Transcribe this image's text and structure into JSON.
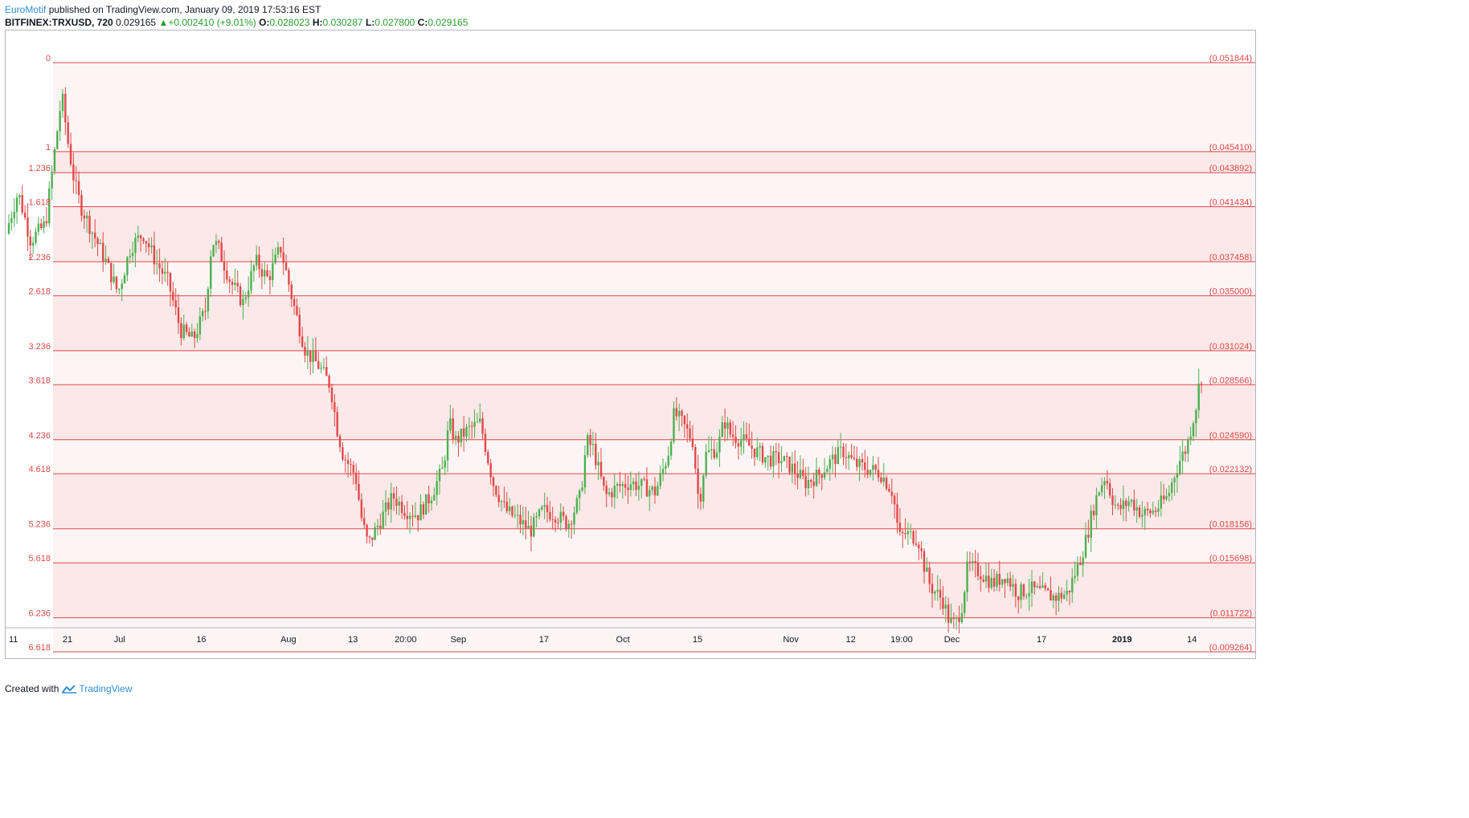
{
  "header": {
    "author": "EuroMotif",
    "published_text": " published on TradingView.com, January 09, 2019 17:53:16 EST",
    "symbol": "BITFINEX:TRXUSD, 720",
    "last_price": "0.029165",
    "change": "+0.002410 (+9.01%)",
    "open_label": "O:",
    "open_value": "0.028023",
    "high_label": "H:",
    "high_value": "0.030287",
    "low_label": "L:",
    "low_value": "0.027800",
    "close_label": "C:",
    "close_value": "0.029165"
  },
  "footer": {
    "created_with": "Created with",
    "brand": "TradingView"
  },
  "colors": {
    "fib_line": "#e04848",
    "fib_text": "#e04848",
    "fib_fill_light": "#fdf5f5",
    "fib_fill_dark": "#fbe8e8",
    "bull": "#4caf50",
    "bear": "#e04848",
    "axis_text": "#131722"
  },
  "chart_data": {
    "type": "candlestick",
    "symbol": "BITFINEX:TRXUSD",
    "interval": "720",
    "y_range": [
      0.0082,
      0.0543
    ],
    "fib_extension": {
      "levels": [
        {
          "ratio": "0",
          "price": "0.051844"
        },
        {
          "ratio": "1",
          "price": "0.045410"
        },
        {
          "ratio": "1.236",
          "price": "0.043892"
        },
        {
          "ratio": "1.618",
          "price": "0.041434"
        },
        {
          "ratio": "2.236",
          "price": "0.037458"
        },
        {
          "ratio": "2.618",
          "price": "0.035000"
        },
        {
          "ratio": "3.236",
          "price": "0.031024"
        },
        {
          "ratio": "3.618",
          "price": "0.028566"
        },
        {
          "ratio": "4.236",
          "price": "0.024590"
        },
        {
          "ratio": "4.618",
          "price": "0.022132"
        },
        {
          "ratio": "5.236",
          "price": "0.018156"
        },
        {
          "ratio": "5.618",
          "price": "0.015698"
        },
        {
          "ratio": "6.236",
          "price": "0.011722"
        },
        {
          "ratio": "6.618",
          "price": "0.009264"
        }
      ]
    },
    "x_ticks": [
      {
        "label": "11",
        "bold": false,
        "frac": 0.0
      },
      {
        "label": "21",
        "bold": false,
        "frac": 0.0484
      },
      {
        "label": "Jul",
        "bold": false,
        "frac": 0.0914
      },
      {
        "label": "16",
        "bold": false,
        "frac": 0.1588
      },
      {
        "label": "Aug",
        "bold": false,
        "frac": 0.2307
      },
      {
        "label": "13",
        "bold": false,
        "frac": 0.2839
      },
      {
        "label": "20:00",
        "bold": false,
        "frac": 0.3274
      },
      {
        "label": "Sep",
        "bold": false,
        "frac": 0.3709
      },
      {
        "label": "17",
        "bold": false,
        "frac": 0.4416
      },
      {
        "label": "Oct",
        "bold": false,
        "frac": 0.5067
      },
      {
        "label": "15",
        "bold": false,
        "frac": 0.5683
      },
      {
        "label": "Nov",
        "bold": false,
        "frac": 0.6453
      },
      {
        "label": "12",
        "bold": false,
        "frac": 0.6947
      },
      {
        "label": "19:00",
        "bold": false,
        "frac": 0.7367
      },
      {
        "label": "Dec",
        "bold": false,
        "frac": 0.7782
      },
      {
        "label": "17",
        "bold": false,
        "frac": 0.8522
      },
      {
        "label": "2019",
        "bold": true,
        "frac": 0.9186
      },
      {
        "label": "14",
        "bold": false,
        "frac": 0.9762
      }
    ],
    "price_path": [
      [
        0.0,
        0.0395
      ],
      [
        0.01,
        0.0425
      ],
      [
        0.02,
        0.039
      ],
      [
        0.032,
        0.0402
      ],
      [
        0.04,
        0.046
      ],
      [
        0.045,
        0.0495
      ],
      [
        0.05,
        0.046
      ],
      [
        0.055,
        0.0432
      ],
      [
        0.06,
        0.0415
      ],
      [
        0.07,
        0.0395
      ],
      [
        0.08,
        0.0375
      ],
      [
        0.09,
        0.0352
      ],
      [
        0.1,
        0.0385
      ],
      [
        0.11,
        0.0395
      ],
      [
        0.12,
        0.0375
      ],
      [
        0.13,
        0.036
      ],
      [
        0.14,
        0.0325
      ],
      [
        0.15,
        0.0318
      ],
      [
        0.16,
        0.034
      ],
      [
        0.165,
        0.039
      ],
      [
        0.17,
        0.0385
      ],
      [
        0.18,
        0.036
      ],
      [
        0.19,
        0.0345
      ],
      [
        0.2,
        0.0375
      ],
      [
        0.21,
        0.0362
      ],
      [
        0.22,
        0.0385
      ],
      [
        0.225,
        0.0365
      ],
      [
        0.23,
        0.0345
      ],
      [
        0.24,
        0.031
      ],
      [
        0.25,
        0.03
      ],
      [
        0.26,
        0.0285
      ],
      [
        0.265,
        0.0255
      ],
      [
        0.27,
        0.0235
      ],
      [
        0.28,
        0.022
      ],
      [
        0.285,
        0.0188
      ],
      [
        0.29,
        0.017
      ],
      [
        0.3,
        0.0188
      ],
      [
        0.31,
        0.0205
      ],
      [
        0.32,
        0.0195
      ],
      [
        0.33,
        0.0192
      ],
      [
        0.34,
        0.0205
      ],
      [
        0.35,
        0.0225
      ],
      [
        0.355,
        0.0258
      ],
      [
        0.36,
        0.0245
      ],
      [
        0.37,
        0.0253
      ],
      [
        0.38,
        0.0258
      ],
      [
        0.39,
        0.0215
      ],
      [
        0.4,
        0.0195
      ],
      [
        0.41,
        0.0188
      ],
      [
        0.42,
        0.018
      ],
      [
        0.43,
        0.0195
      ],
      [
        0.44,
        0.0192
      ],
      [
        0.45,
        0.0185
      ],
      [
        0.46,
        0.0205
      ],
      [
        0.465,
        0.0245
      ],
      [
        0.47,
        0.024
      ],
      [
        0.48,
        0.0205
      ],
      [
        0.49,
        0.0212
      ],
      [
        0.5,
        0.0215
      ],
      [
        0.51,
        0.0212
      ],
      [
        0.52,
        0.0208
      ],
      [
        0.53,
        0.0235
      ],
      [
        0.535,
        0.0265
      ],
      [
        0.54,
        0.026
      ],
      [
        0.55,
        0.0245
      ],
      [
        0.555,
        0.0198
      ],
      [
        0.56,
        0.0235
      ],
      [
        0.57,
        0.024
      ],
      [
        0.575,
        0.026
      ],
      [
        0.58,
        0.025
      ],
      [
        0.59,
        0.0245
      ],
      [
        0.6,
        0.0238
      ],
      [
        0.61,
        0.0232
      ],
      [
        0.62,
        0.0232
      ],
      [
        0.63,
        0.0225
      ],
      [
        0.64,
        0.0215
      ],
      [
        0.65,
        0.022
      ],
      [
        0.66,
        0.023
      ],
      [
        0.67,
        0.0238
      ],
      [
        0.68,
        0.0228
      ],
      [
        0.69,
        0.0225
      ],
      [
        0.7,
        0.0222
      ],
      [
        0.71,
        0.0208
      ],
      [
        0.715,
        0.0175
      ],
      [
        0.72,
        0.0178
      ],
      [
        0.73,
        0.0175
      ],
      [
        0.735,
        0.0155
      ],
      [
        0.74,
        0.014
      ],
      [
        0.75,
        0.013
      ],
      [
        0.755,
        0.0115
      ],
      [
        0.76,
        0.0112
      ],
      [
        0.765,
        0.0125
      ],
      [
        0.77,
        0.0155
      ],
      [
        0.78,
        0.015
      ],
      [
        0.79,
        0.0142
      ],
      [
        0.8,
        0.0148
      ],
      [
        0.81,
        0.0135
      ],
      [
        0.82,
        0.0138
      ],
      [
        0.83,
        0.0135
      ],
      [
        0.84,
        0.0132
      ],
      [
        0.85,
        0.0135
      ],
      [
        0.86,
        0.016
      ],
      [
        0.865,
        0.0175
      ],
      [
        0.87,
        0.0195
      ],
      [
        0.875,
        0.021
      ],
      [
        0.88,
        0.022
      ],
      [
        0.885,
        0.0205
      ],
      [
        0.89,
        0.0195
      ],
      [
        0.9,
        0.0202
      ],
      [
        0.91,
        0.0192
      ],
      [
        0.92,
        0.0195
      ],
      [
        0.93,
        0.0205
      ],
      [
        0.935,
        0.022
      ],
      [
        0.94,
        0.0232
      ],
      [
        0.945,
        0.024
      ],
      [
        0.95,
        0.026
      ],
      [
        0.953,
        0.0272
      ],
      [
        0.956,
        0.0292
      ]
    ]
  }
}
